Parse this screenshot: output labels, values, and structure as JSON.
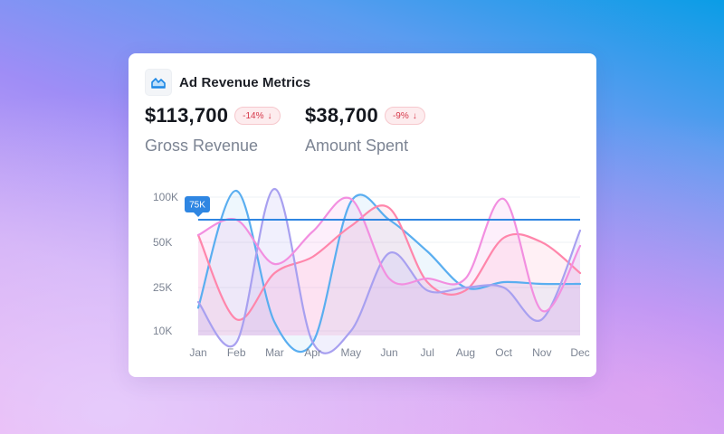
{
  "card": {
    "title": "Ad Revenue Metrics",
    "icon": "chart-area-icon"
  },
  "metrics": [
    {
      "value": "$113,700",
      "change": "-14%",
      "change_icon": "arrow-down-icon",
      "label": "Gross Revenue"
    },
    {
      "value": "$38,700",
      "change": "-9%",
      "change_icon": "arrow-down-icon",
      "label": "Amount Spent"
    }
  ],
  "colors": {
    "blue": "#5aaef0",
    "pink": "#ff86ab",
    "violet": "#a8a0f0",
    "magenta": "#f28fe0",
    "reference": "#2f86e2",
    "badge_red": "#d6384a"
  },
  "chart_data": {
    "type": "line",
    "categories": [
      "Jan",
      "Feb",
      "Mar",
      "Apr",
      "May",
      "Jun",
      "Jul",
      "Aug",
      "Oct",
      "Nov",
      "Dec"
    ],
    "y_ticks": [
      "100K",
      "50K",
      "25K",
      "10K"
    ],
    "y_tick_values": [
      100000,
      50000,
      25000,
      10000
    ],
    "grid": true,
    "reference_line": {
      "value": 75000,
      "label": "75K"
    },
    "series": [
      {
        "values": [
          18000,
          107000,
          13000,
          6000,
          95000,
          75000,
          45000,
          25000,
          28000,
          27000,
          27000
        ]
      },
      {
        "values": [
          58000,
          14000,
          33000,
          42000,
          68000,
          88000,
          28000,
          24000,
          55000,
          50000,
          33000
        ]
      },
      {
        "values": [
          20000,
          6000,
          109000,
          6000,
          10000,
          44000,
          24000,
          25000,
          25000,
          14000,
          63000
        ]
      },
      {
        "values": [
          58000,
          75000,
          38000,
          62000,
          98000,
          30000,
          30000,
          30000,
          98000,
          17000,
          48000
        ]
      }
    ]
  }
}
